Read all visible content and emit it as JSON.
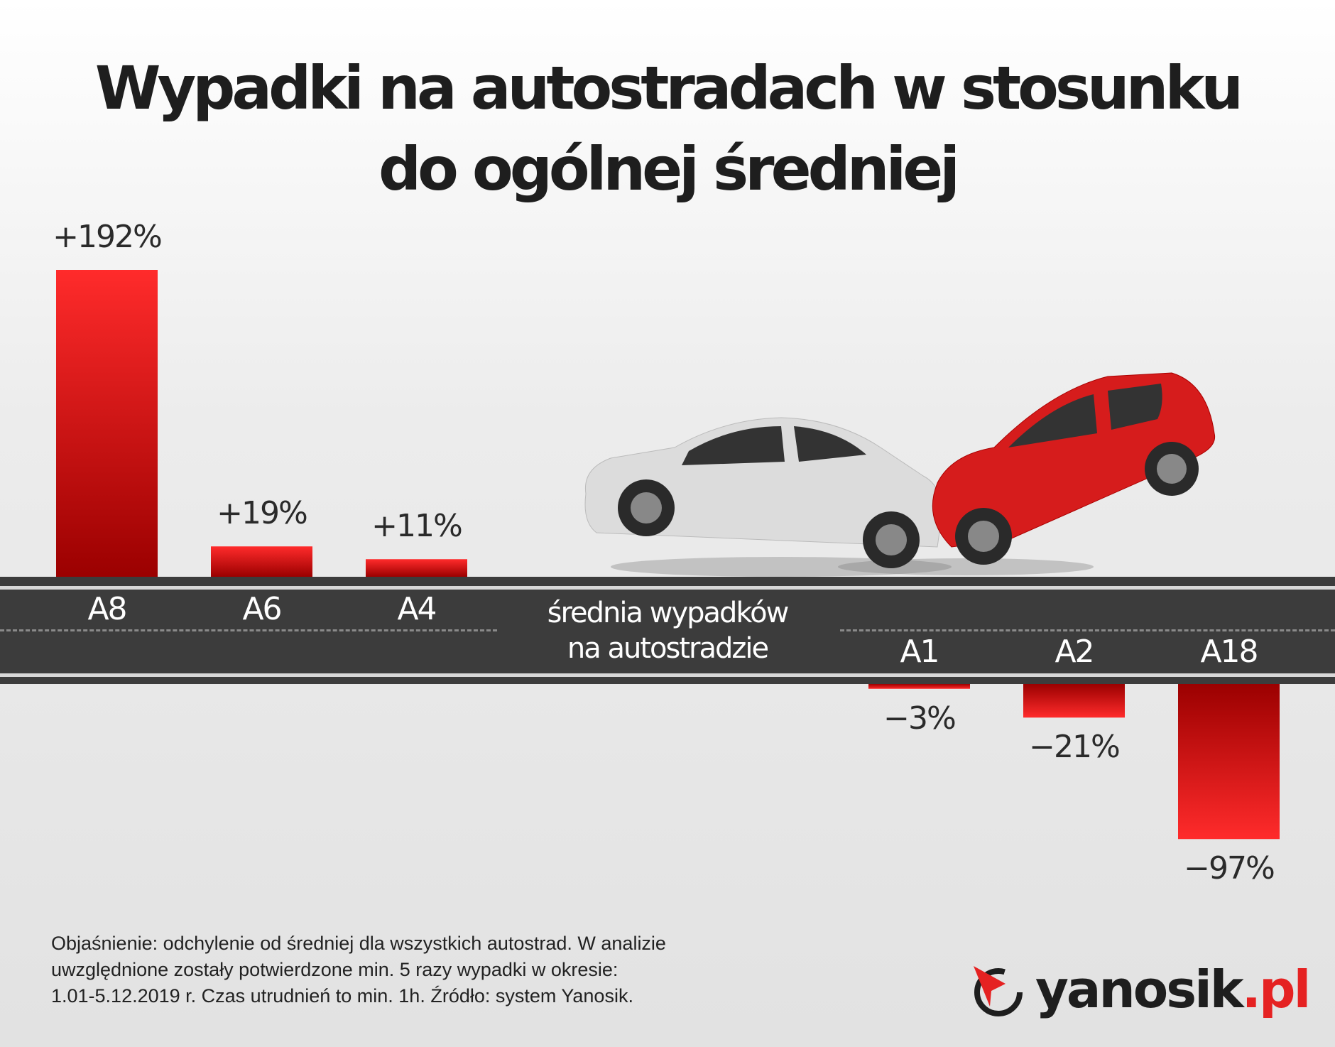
{
  "title": {
    "line1": "Wypadki na autostradach w stosunku",
    "line2": "do ogólnej średniej"
  },
  "road": {
    "average_label_line1": "średnia wypadków",
    "average_label_line2": "na autostradzie"
  },
  "chart_data": {
    "type": "bar",
    "title": "Wypadki na autostradach w stosunku do ogólnej średniej",
    "categories": [
      "A8",
      "A6",
      "A4",
      "A1",
      "A2",
      "A18"
    ],
    "values": [
      192,
      19,
      11,
      -3,
      -21,
      -97
    ],
    "value_labels": [
      "+192%",
      "+19%",
      "+11%",
      "−3%",
      "−21%",
      "−97%"
    ],
    "baseline_label": "średnia wypadków na autostradzie",
    "unit": "%",
    "grid": false,
    "colors": {
      "bar_light": "#ff2b2b",
      "bar_dark": "#9b0000",
      "road": "#3c3c3c"
    }
  },
  "footnote": {
    "line1": "Objaśnienie: odchylenie od średniej dla wszystkich autostrad. W analizie",
    "line2": "uwzględnione zostały potwierdzone min. 5 razy wypadki w okresie:",
    "line3": "1.01-5.12.2019 r. Czas utrudnień to min. 1h. Źródło: system Yanosik."
  },
  "logo": {
    "name": "yanosik",
    "suffix": ".pl",
    "accent": "#e52222"
  }
}
